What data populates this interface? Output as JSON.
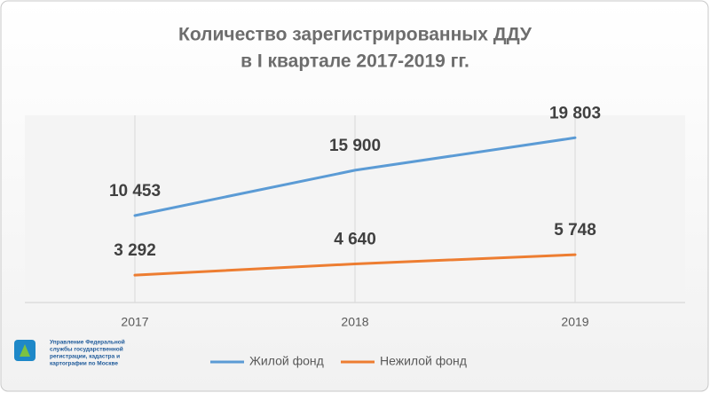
{
  "chart_data": {
    "type": "line",
    "title": [
      "Количество зарегистрированных ДДУ",
      "в I квартале 2017-2019 гг."
    ],
    "categories": [
      "2017",
      "2018",
      "2019"
    ],
    "series": [
      {
        "name": "Жилой фонд",
        "color": "#5b9bd5",
        "values": [
          10453,
          15900,
          19803
        ],
        "value_labels": [
          "10 453",
          "15 900",
          "19 803"
        ]
      },
      {
        "name": "Нежилой фонд",
        "color": "#ed7d31",
        "values": [
          3292,
          4640,
          5748
        ],
        "value_labels": [
          "3 292",
          "4 640",
          "5 748"
        ]
      }
    ],
    "ylim": [
      0,
      22500
    ],
    "xgrid": true,
    "legend": "bottom"
  },
  "logo": {
    "lines": [
      "Управление Федеральной",
      "службы государственной",
      "регистрации, кадастра и",
      "картографии по Москве"
    ]
  }
}
